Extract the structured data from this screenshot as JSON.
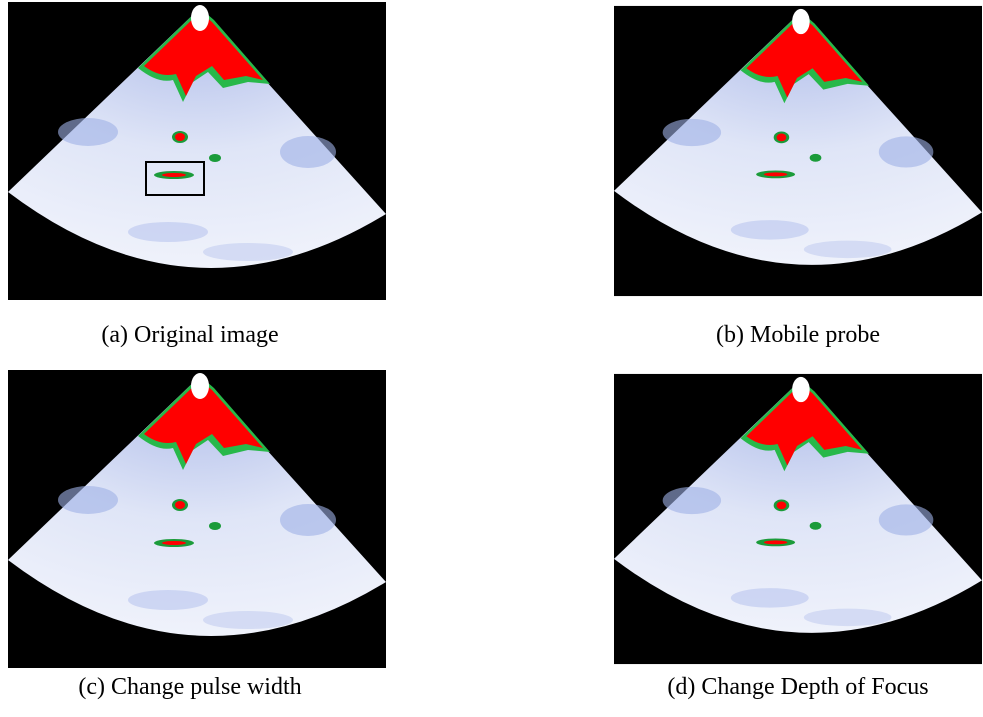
{
  "panels": [
    {
      "caption": "(a) Original image"
    },
    {
      "caption": "(b) Mobile probe"
    },
    {
      "caption": "(c) Change pulse width"
    },
    {
      "caption": "(d) Change Depth of Focus"
    }
  ]
}
